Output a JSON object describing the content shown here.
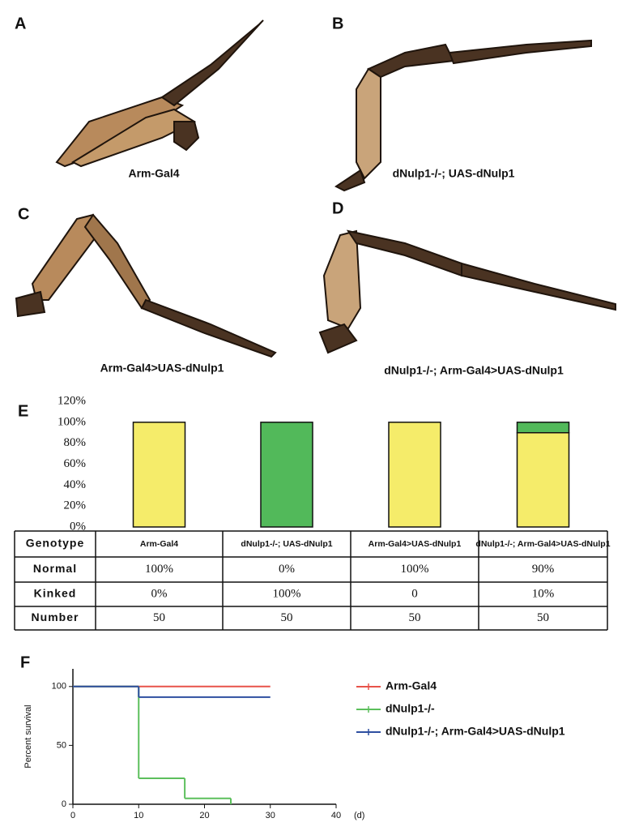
{
  "panels": [
    {
      "letter": "A",
      "caption": "Arm-Gal4"
    },
    {
      "letter": "B",
      "caption": "dNulp1-/-;  UAS-dNulp1"
    },
    {
      "letter": "C",
      "caption": "Arm-Gal4>UAS-dNulp1"
    },
    {
      "letter": "D",
      "caption": "dNulp1-/-;  Arm-Gal4>UAS-dNulp1"
    }
  ],
  "chart_data": [
    {
      "type": "bar",
      "stacked": true,
      "panel": "E",
      "categories": [
        "Arm-Gal4",
        "dNulp1-/-;  UAS-dNulp1",
        "Arm-Gal4>UAS-dNulp1",
        "dNulp1-/-;  Arm-Gal4>UAS-dNulp1"
      ],
      "series": [
        {
          "name": "Normal",
          "color": "#f5ec6a",
          "values": [
            100,
            0,
            100,
            90
          ],
          "value_labels": [
            "100%",
            "0%",
            "100%",
            "90%"
          ]
        },
        {
          "name": "Kinked",
          "color": "#52b95a",
          "values": [
            0,
            100,
            0,
            10
          ],
          "value_labels": [
            "0%",
            "100%",
            "0",
            "10%"
          ]
        }
      ],
      "ylim": [
        0,
        120
      ],
      "yticks": [
        {
          "value": 0,
          "label": "0%"
        },
        {
          "value": 20,
          "label": "20%"
        },
        {
          "value": 40,
          "label": "40%"
        },
        {
          "value": 60,
          "label": "60%"
        },
        {
          "value": 80,
          "label": "80%"
        },
        {
          "value": 100,
          "label": "100%"
        },
        {
          "value": 120,
          "label": "120%"
        }
      ],
      "table_header": "Genotype",
      "count_row": {
        "name": "Number",
        "values": [
          50,
          50,
          50,
          50
        ]
      }
    },
    {
      "type": "line",
      "step": true,
      "panel": "F",
      "y_label": "Percent survival",
      "x_label": "(d)",
      "series": [
        {
          "name": "Arm-Gal4",
          "color": "#e8534a",
          "x": [
            0,
            30
          ],
          "values": [
            100,
            100
          ]
        },
        {
          "name": "dNulp1-/-",
          "color": "#5cbf5c",
          "x": [
            0,
            10,
            17,
            24
          ],
          "values": [
            100,
            22,
            5,
            0
          ]
        },
        {
          "name": "dNulp1-/-;  Arm-Gal4>UAS-dNulp1",
          "color": "#2e4fa0",
          "x": [
            0,
            10,
            30
          ],
          "values": [
            100,
            91,
            91
          ]
        }
      ],
      "xlim": [
        0,
        40
      ],
      "xticks": [
        0,
        10,
        20,
        30,
        40
      ],
      "ylim": [
        0,
        115
      ],
      "yticks": [
        0,
        50,
        100
      ]
    }
  ]
}
